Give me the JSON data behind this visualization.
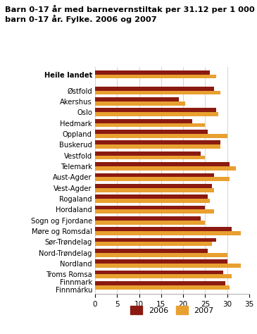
{
  "title": "Barn 0-17 år med barnevernstiltak per 31.12 per 1 000\nbarn 0-17 år. Fylke. 2006 og 2007",
  "categories": [
    "Heile landet",
    "Østfold",
    "Akershus",
    "Oslo",
    "Hedmark",
    "Oppland",
    "Buskerud",
    "Vestfold",
    "Telemark",
    "Aust-Agder",
    "Vest-Agder",
    "Rogaland",
    "Hordaland",
    "Sogn og Fjordane",
    "Møre og Romsdal",
    "Sør-Trøndelag",
    "Nord-Trøndelag",
    "Nordland",
    "Troms Romsa",
    "Finnmark\nFinnmárku"
  ],
  "values_2006": [
    26.0,
    27.0,
    19.0,
    27.5,
    22.0,
    25.5,
    28.5,
    24.0,
    30.5,
    27.0,
    26.5,
    25.5,
    25.0,
    24.0,
    31.0,
    27.5,
    25.5,
    30.0,
    29.0,
    29.5
  ],
  "values_2007": [
    27.5,
    28.5,
    20.5,
    28.0,
    25.0,
    30.0,
    28.5,
    25.0,
    32.0,
    30.5,
    27.0,
    26.0,
    27.0,
    25.0,
    33.0,
    26.5,
    30.0,
    33.0,
    31.0,
    30.5
  ],
  "color_2006": "#8B1A10",
  "color_2007": "#E8A030",
  "xlim": [
    0,
    35
  ],
  "xticks": [
    0,
    5,
    10,
    15,
    20,
    25,
    30,
    35
  ],
  "background_color": "#ffffff",
  "grid_color": "#cccccc"
}
